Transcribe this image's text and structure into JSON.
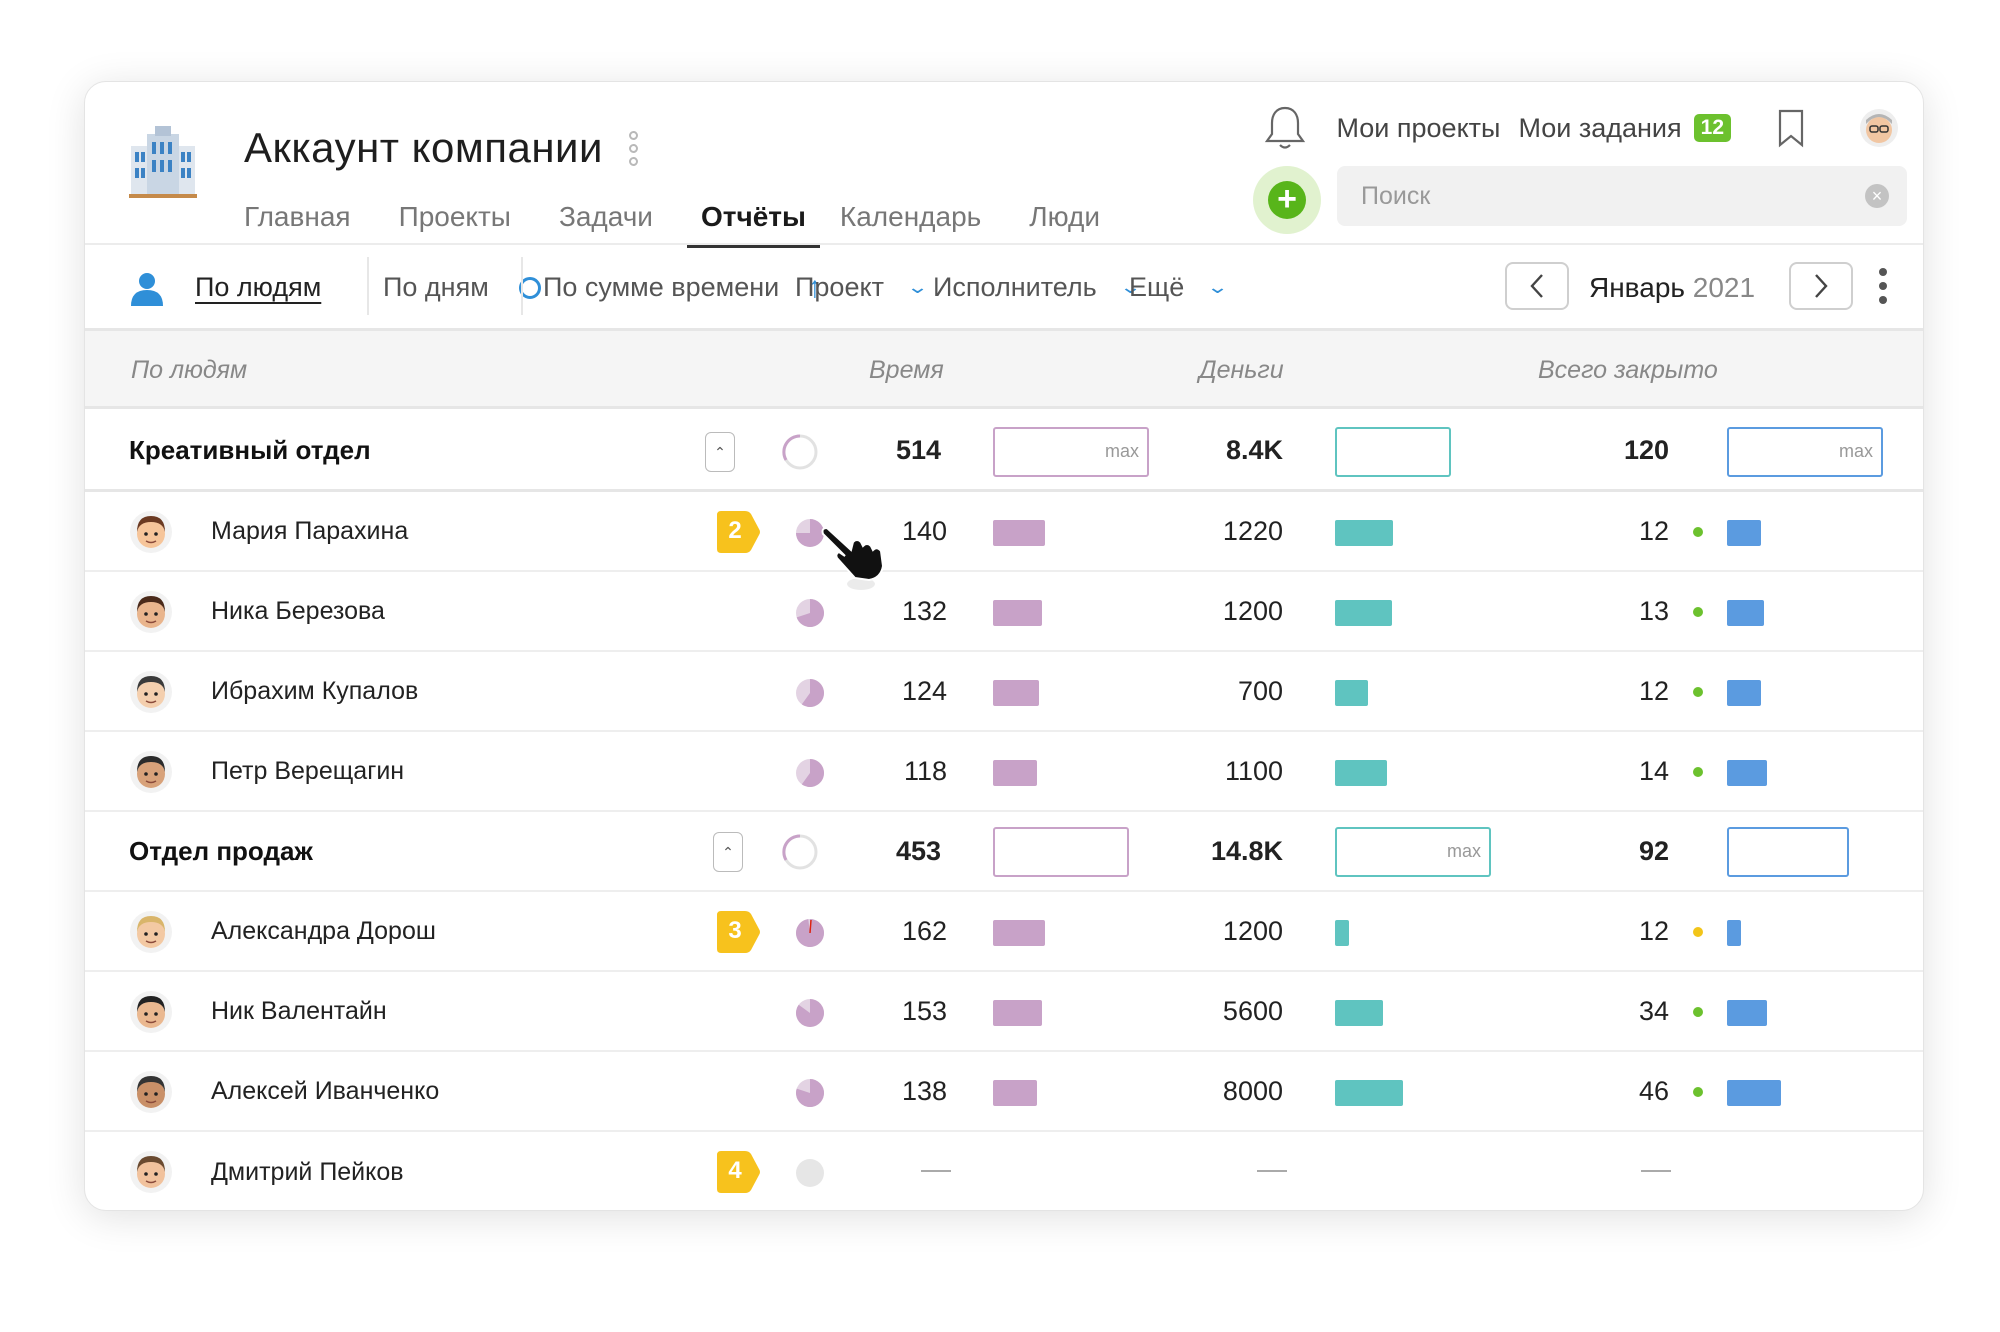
{
  "header": {
    "company_title": "Аккаунт компании",
    "nav": [
      {
        "label": "Главная",
        "active": false
      },
      {
        "label": "Проекты",
        "active": false
      },
      {
        "label": "Задачи",
        "active": false
      },
      {
        "label": "Отчёты",
        "active": true
      },
      {
        "label": "Календарь",
        "active": false
      },
      {
        "label": "Люди",
        "active": false
      }
    ],
    "my_projects": "Мои проекты",
    "my_tasks": "Мои задания",
    "my_tasks_count": "12",
    "search_placeholder": "Поиск",
    "accent_green": "#58b51a"
  },
  "toolbar": {
    "by_people": "По людям",
    "by_days": "По дням",
    "by_time_sum": "По сумме времени",
    "project": "Проект",
    "assignee": "Исполнитель",
    "more": "Ещё",
    "month": "Январь",
    "year": "2021",
    "accent_blue": "#2f8fd8"
  },
  "table": {
    "headers": {
      "people": "По людям",
      "time": "Время",
      "money": "Деньги",
      "closed": "Всего закрыто"
    },
    "max_label": "max",
    "groups": [
      {
        "name": "Креативный отдел",
        "time": "514",
        "money": "8.4K",
        "closed": "120",
        "members": [
          {
            "name": "Мария Парахина",
            "step": "2",
            "time": "140",
            "money": "1220",
            "closed": "12",
            "status": "green",
            "pie": 0.75
          },
          {
            "name": "Ника Березова",
            "step": "",
            "time": "132",
            "money": "1200",
            "closed": "13",
            "status": "green",
            "pie": 0.7
          },
          {
            "name": "Ибрахим Купалов",
            "step": "",
            "time": "124",
            "money": "700",
            "closed": "12",
            "status": "green",
            "pie": 0.6
          },
          {
            "name": "Петр Верещагин",
            "step": "",
            "time": "118",
            "money": "1100",
            "closed": "14",
            "status": "green",
            "pie": 0.6
          }
        ]
      },
      {
        "name": "Отдел продаж",
        "time": "453",
        "money": "14.8K",
        "closed": "92",
        "members": [
          {
            "name": "Александра Дорош",
            "step": "3",
            "time": "162",
            "money": "1200",
            "closed": "12",
            "status": "yellow",
            "pie": 0.98
          },
          {
            "name": "Ник Валентайн",
            "step": "",
            "time": "153",
            "money": "5600",
            "closed": "34",
            "status": "green",
            "pie": 0.85
          },
          {
            "name": "Алексей Иванченко",
            "step": "",
            "time": "138",
            "money": "8000",
            "closed": "46",
            "status": "green",
            "pie": 0.8
          }
        ]
      }
    ],
    "extra_row": {
      "name": "Дмитрий Пейков",
      "step": "4",
      "time": "—",
      "money": "—",
      "closed": "—"
    },
    "colors": {
      "time": "#c8a2c8",
      "money": "#5fc4c0",
      "closed": "#5b9be0",
      "step": "#f7c21d"
    }
  }
}
